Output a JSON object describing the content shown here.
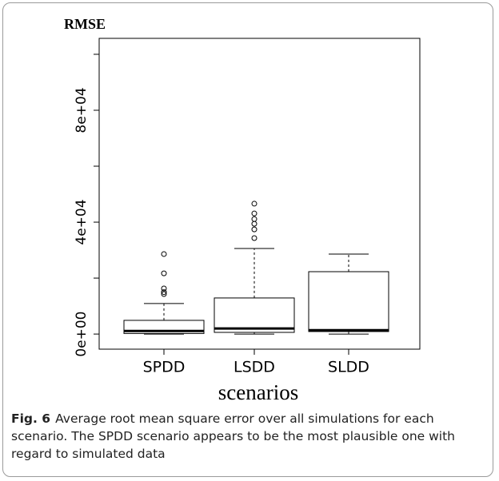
{
  "chart_data": {
    "type": "box",
    "title": "RMSE",
    "x_label": "scenarios",
    "categories": [
      "SPDD",
      "LSDD",
      "SLDD"
    ],
    "boxes": [
      {
        "whislo": 0,
        "q1": 200,
        "med": 1100,
        "q3": 4900,
        "whishi": 10900,
        "fliers": [
          14300,
          15000,
          16300,
          21700,
          28600
        ]
      },
      {
        "whislo": 0,
        "q1": 600,
        "med": 2000,
        "q3": 12900,
        "whishi": 30600,
        "fliers": [
          34300,
          37400,
          39400,
          41100,
          43100,
          46600
        ]
      },
      {
        "whislo": 0,
        "q1": 900,
        "med": 1400,
        "q3": 22300,
        "whishi": 28600,
        "fliers": []
      }
    ],
    "color": "#000000",
    "ylim": [
      -5400,
      105700
    ],
    "yticks": [
      {
        "value": 0,
        "label": "0e+00"
      },
      {
        "value": 40000,
        "label": "4e+04"
      },
      {
        "value": 80000,
        "label": "8e+04"
      }
    ],
    "minor_yticks": [
      20000,
      60000,
      100000
    ]
  },
  "caption": {
    "label": "Fig. 6",
    "text": "Average root mean square error over all simulations for each scenario. The SPDD scenario appears to be the most plausible one with regard to simulated data"
  }
}
